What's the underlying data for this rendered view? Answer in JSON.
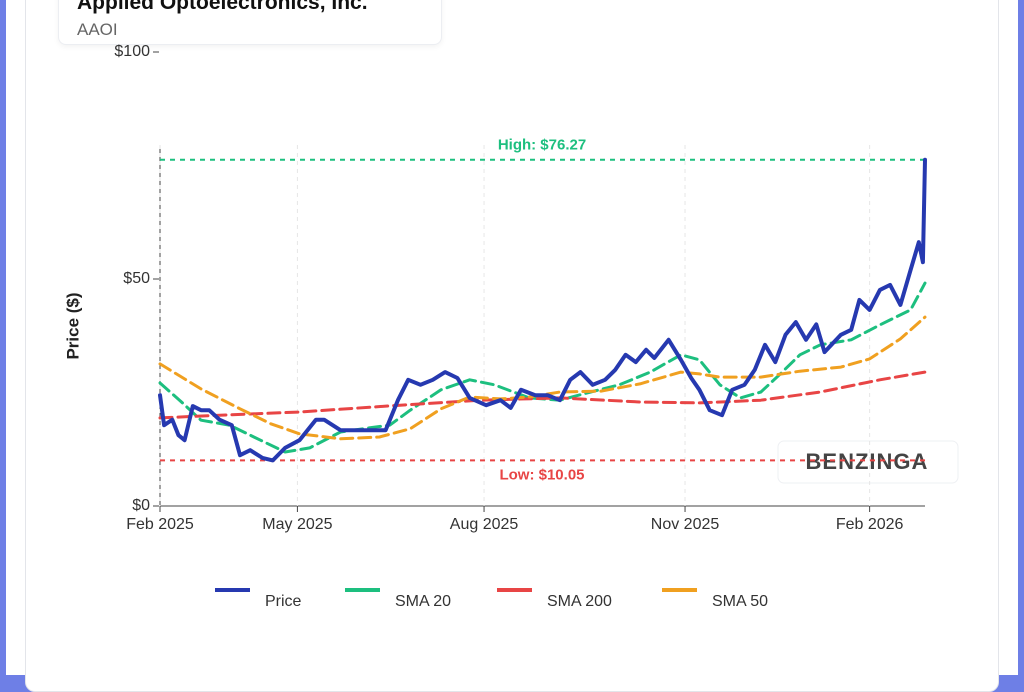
{
  "header": {
    "title": "Applied Optoelectronics, Inc.",
    "ticker": "AAOI"
  },
  "watermark": "BENZINGA",
  "chart_data": {
    "type": "line",
    "y_label": "Price ($)",
    "xlim": [
      0,
      373
    ],
    "xticks": [
      {
        "value": 0,
        "label": "Feb 2025"
      },
      {
        "value": 67,
        "label": "May 2025"
      },
      {
        "value": 158,
        "label": "Aug 2025"
      },
      {
        "value": 256,
        "label": "Nov 2025"
      },
      {
        "value": 346,
        "label": "Feb 2026"
      }
    ],
    "ylim": [
      0,
      100
    ],
    "yticks": [
      {
        "value": 0,
        "label": "$0"
      },
      {
        "value": 50,
        "label": "$50"
      },
      {
        "value": 100,
        "label": "$100"
      }
    ],
    "grid": true,
    "legend": "bottom",
    "series": [
      {
        "name": "Price",
        "color": "#2639b0",
        "width": 4,
        "x": [
          0,
          2,
          6,
          9,
          12,
          16,
          20,
          24,
          29,
          35,
          39,
          44,
          50,
          55,
          61,
          68,
          76,
          80,
          88,
          95,
          102,
          110,
          116,
          121,
          127,
          133,
          139,
          145,
          151,
          159,
          166,
          171,
          176,
          183,
          189,
          195,
          200,
          205,
          211,
          217,
          222,
          227,
          232,
          237,
          241,
          248,
          254,
          259,
          263,
          268,
          274,
          279,
          285,
          290,
          295,
          300,
          305,
          310,
          315,
          320,
          324,
          332,
          337,
          341,
          346,
          351,
          356,
          361,
          366,
          370,
          372,
          373
        ],
        "values": [
          24.4,
          17.8,
          19.0,
          15.6,
          14.5,
          22.0,
          21.1,
          21.1,
          19.0,
          17.8,
          11.2,
          12.3,
          10.6,
          10.05,
          12.8,
          14.5,
          19.0,
          19.0,
          16.7,
          16.7,
          16.7,
          16.7,
          23.3,
          27.8,
          26.7,
          27.8,
          29.5,
          28.2,
          23.8,
          22.2,
          23.3,
          21.6,
          25.6,
          24.4,
          24.4,
          23.3,
          27.8,
          29.5,
          26.7,
          27.8,
          30.0,
          33.3,
          31.7,
          34.4,
          32.6,
          36.6,
          32.2,
          28.2,
          25.6,
          21.1,
          20.0,
          25.6,
          26.7,
          30.0,
          35.5,
          31.7,
          37.7,
          40.5,
          36.6,
          40.0,
          33.9,
          37.7,
          38.8,
          45.4,
          43.2,
          47.6,
          48.7,
          44.3,
          52.0,
          58.1,
          53.7,
          76.27
        ]
      },
      {
        "name": "SMA 20",
        "color": "#1dbf7f",
        "width": 3,
        "dash": true,
        "x": [
          0,
          10,
          20,
          34,
          49,
          61,
          73,
          88,
          102,
          112,
          122,
          137,
          151,
          163,
          180,
          195,
          210,
          224,
          239,
          254,
          263,
          273,
          283,
          293,
          302,
          312,
          322,
          337,
          351,
          366,
          373
        ],
        "values": [
          27.1,
          23.1,
          18.9,
          17.8,
          14.5,
          11.9,
          12.8,
          16.3,
          17.2,
          17.8,
          21.1,
          25.6,
          27.8,
          26.7,
          23.8,
          23.3,
          25.1,
          26.7,
          29.5,
          33.3,
          32.2,
          26.7,
          23.8,
          25.1,
          28.9,
          33.3,
          35.5,
          36.6,
          39.9,
          43.2,
          49.1
        ]
      },
      {
        "name": "SMA 200",
        "color": "#e84545",
        "width": 3,
        "dash": true,
        "x": [
          0,
          29,
          68,
          117,
          156,
          195,
          234,
          263,
          293,
          322,
          351,
          373
        ],
        "values": [
          19.4,
          20.0,
          20.7,
          22.2,
          23.3,
          23.8,
          22.9,
          22.7,
          23.3,
          25.1,
          27.8,
          29.5
        ]
      },
      {
        "name": "SMA 50",
        "color": "#f0a020",
        "width": 3,
        "dash": true,
        "x": [
          0,
          20,
          39,
          54,
          68,
          88,
          107,
          122,
          137,
          151,
          166,
          180,
          195,
          215,
          234,
          254,
          263,
          273,
          293,
          312,
          332,
          346,
          361,
          373
        ],
        "values": [
          31.3,
          25.8,
          21.4,
          18.1,
          15.9,
          14.8,
          15.2,
          17.0,
          21.4,
          24.0,
          23.6,
          24.0,
          25.1,
          25.3,
          26.9,
          29.5,
          29.1,
          28.4,
          28.4,
          29.7,
          30.6,
          32.4,
          36.8,
          41.6
        ]
      }
    ],
    "annotations": [
      {
        "label": "High: $76.27",
        "value": 76.27,
        "color": "#1dbf7f",
        "position": "above"
      },
      {
        "label": "Low: $10.05",
        "value": 10.05,
        "color": "#e84545",
        "position": "below"
      }
    ]
  }
}
